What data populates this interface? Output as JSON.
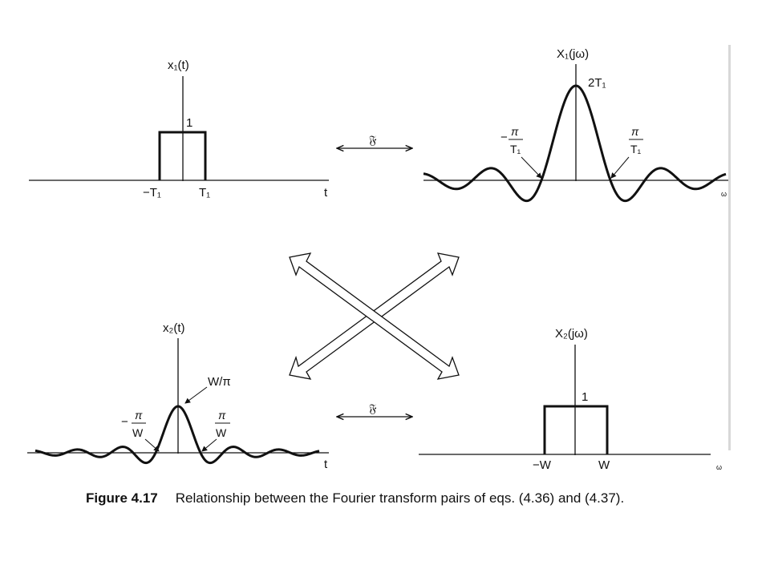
{
  "top_left": {
    "ylabel": "x₁(t)",
    "height_label": "1",
    "tick_neg": "−T₁",
    "tick_pos": "T₁",
    "xlabel": "t"
  },
  "top_right": {
    "ylabel": "X₁(jω)",
    "peak_label": "2T₁",
    "zero_neg": "−π/T₁",
    "zero_pos": "π/T₁"
  },
  "bottom_left": {
    "ylabel": "x₂(t)",
    "peak_label": "W/π",
    "zero_neg": "−π/W",
    "zero_pos": "π/W",
    "xlabel": "t"
  },
  "bottom_right": {
    "ylabel": "X₂(jω)",
    "height_label": "1",
    "tick_neg": "−W",
    "tick_pos": "W"
  },
  "transform_symbol": "𝔉",
  "caption": {
    "figure_number": "Figure 4.17",
    "text": "Relationship between the Fourier transform pairs of eqs. (4.36) and (4.37)."
  }
}
